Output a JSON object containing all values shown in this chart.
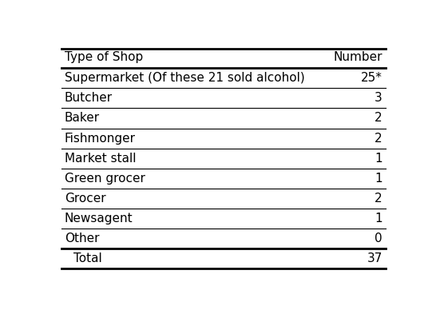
{
  "col_headers": [
    "Type of Shop",
    "Number"
  ],
  "rows": [
    [
      "Supermarket (Of these 21 sold alcohol)",
      "25*"
    ],
    [
      "Butcher",
      "3"
    ],
    [
      "Baker",
      "2"
    ],
    [
      "Fishmonger",
      "2"
    ],
    [
      "Market stall",
      "1"
    ],
    [
      "Green grocer",
      "1"
    ],
    [
      "Grocer",
      "2"
    ],
    [
      "Newsagent",
      "1"
    ],
    [
      "Other",
      "0"
    ]
  ],
  "total_row": [
    "Total",
    "37"
  ],
  "background_color": "#ffffff",
  "text_color": "#000000",
  "font_size": 11,
  "header_font_size": 11,
  "fig_width": 5.46,
  "fig_height": 3.98
}
